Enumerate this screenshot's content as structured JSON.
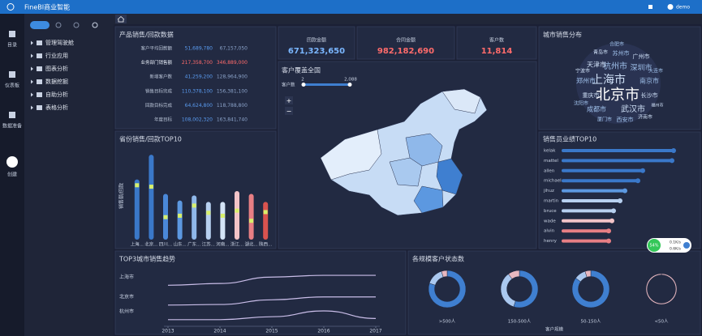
{
  "topbar": {
    "title": "FineBI商业智能",
    "user": "demo"
  },
  "sidebar": {
    "items": [
      "目录",
      "仪表板",
      "数据准备",
      "创建"
    ]
  },
  "tree": {
    "items": [
      "管理驾驶舱",
      "行业应用",
      "图表分析",
      "数据挖掘",
      "自助分析",
      "表格分析"
    ]
  },
  "widget": {
    "percent": "54%",
    "up": "0.1K/s",
    "down": "0.6K/s"
  },
  "panels": {
    "sales_table": {
      "title": "产品销售/回款数据",
      "rows": [
        [
          "客户平均回款额",
          "51,689,780",
          "67,157,050"
        ],
        [
          "业务部门销售额",
          "217,358,700",
          "346,889,000"
        ],
        [
          "新增客户数",
          "41,259,200",
          "128,964,900"
        ],
        [
          "销售目标完成",
          "110,378,100",
          "156,381,100"
        ],
        [
          "回款目标完成",
          "64,624,800",
          "118,788,800"
        ],
        [
          "年度目标",
          "108,002,320",
          "163,841,740"
        ]
      ]
    },
    "kpis": [
      {
        "label": "回款金额",
        "value": "671,323,650"
      },
      {
        "label": "合同金额",
        "value": "982,182,690"
      },
      {
        "label": "客户数",
        "value": "11,814"
      }
    ],
    "map": {
      "title": "客户覆盖全国",
      "legend_title": "客户数",
      "legend_min": "2",
      "legend_max": "2,088",
      "zoom_in": "+",
      "zoom_out": "−"
    },
    "cloud": {
      "title": "城市销售分布",
      "words": [
        "北京市",
        "上海市",
        "武汉市",
        "杭州市",
        "深圳市",
        "天津市",
        "南京市",
        "郑州市",
        "广州市",
        "成都市",
        "苏州市",
        "重庆市",
        "长沙市",
        "西安市",
        "青岛市",
        "大连市",
        "宁波市",
        "厦门市",
        "济南市",
        "合肥市",
        "沈阳市",
        "福州市"
      ]
    }
  },
  "chart_data": [
    {
      "type": "bar",
      "title": "省份销售/回款TOP10",
      "y_label": "销售额/回款",
      "categories": [
        "上海...",
        "北京...",
        "四川...",
        "山东...",
        "广东...",
        "江苏...",
        "河南...",
        "浙江...",
        "湖北...",
        "陕西..."
      ],
      "values": [
        83,
        117,
        63,
        54,
        61,
        52,
        52,
        67,
        63,
        52
      ],
      "markers": [
        75,
        73,
        31,
        33,
        47,
        37,
        33,
        40,
        26,
        38
      ],
      "colors": [
        "#3a78c9",
        "#3a78c9",
        "#4a88d8",
        "#5c98e0",
        "#8fb8ea",
        "#b7d0f0",
        "#d4e4f7",
        "#f3c4c8",
        "#e87f84",
        "#d9534f"
      ],
      "marker_color": "#d8f06a",
      "ylim": [
        0,
        125
      ]
    },
    {
      "type": "hbar",
      "title": "销售员业绩TOP10",
      "categories": [
        "kelak",
        "mattel",
        "allen",
        "michael",
        "jihuz",
        "martin",
        "bruce",
        "wade",
        "alvin",
        "henry"
      ],
      "values": [
        138,
        136,
        100,
        94,
        78,
        72,
        64,
        62,
        58,
        58
      ],
      "colors": [
        "#3a78c9",
        "#3a78c9",
        "#3a78c9",
        "#3a78c9",
        "#5c98e0",
        "#b7d0f0",
        "#b7d0f0",
        "#f3c4c8",
        "#e87f84",
        "#e87f84"
      ],
      "xlim": [
        0,
        150
      ]
    },
    {
      "type": "line",
      "title": "TOP3城市销售趋势",
      "x": [
        2013,
        2014,
        2015,
        2016,
        2017
      ],
      "xticks": [
        2013,
        2014,
        2015,
        2016,
        2017
      ],
      "series": [
        {
          "name": "上海市",
          "color": "#c9bde8",
          "values": [
            69,
            72,
            83,
            86,
            86
          ]
        },
        {
          "name": "北京市",
          "color": "#c9bde8",
          "values": [
            35,
            36,
            44,
            49,
            49
          ]
        },
        {
          "name": "杭州市",
          "color": "#c9bde8",
          "values": [
            10,
            10,
            15,
            25,
            12
          ]
        }
      ],
      "xlim": [
        2013,
        2017
      ],
      "ylim": [
        0,
        100
      ]
    },
    {
      "type": "donut",
      "title": "各规模客户状态数",
      "x_label": "客户规模",
      "categories": [
        ">500人",
        "150-500人",
        "50-150人",
        "<50人"
      ],
      "series": [
        {
          "color": "#3f7fd0",
          "values": [
            80,
            55,
            85,
            0
          ]
        },
        {
          "color": "#aac8ef",
          "values": [
            15,
            35,
            10,
            0
          ]
        },
        {
          "color": "#e8b8c0",
          "values": [
            5,
            10,
            5,
            100
          ]
        }
      ]
    }
  ]
}
